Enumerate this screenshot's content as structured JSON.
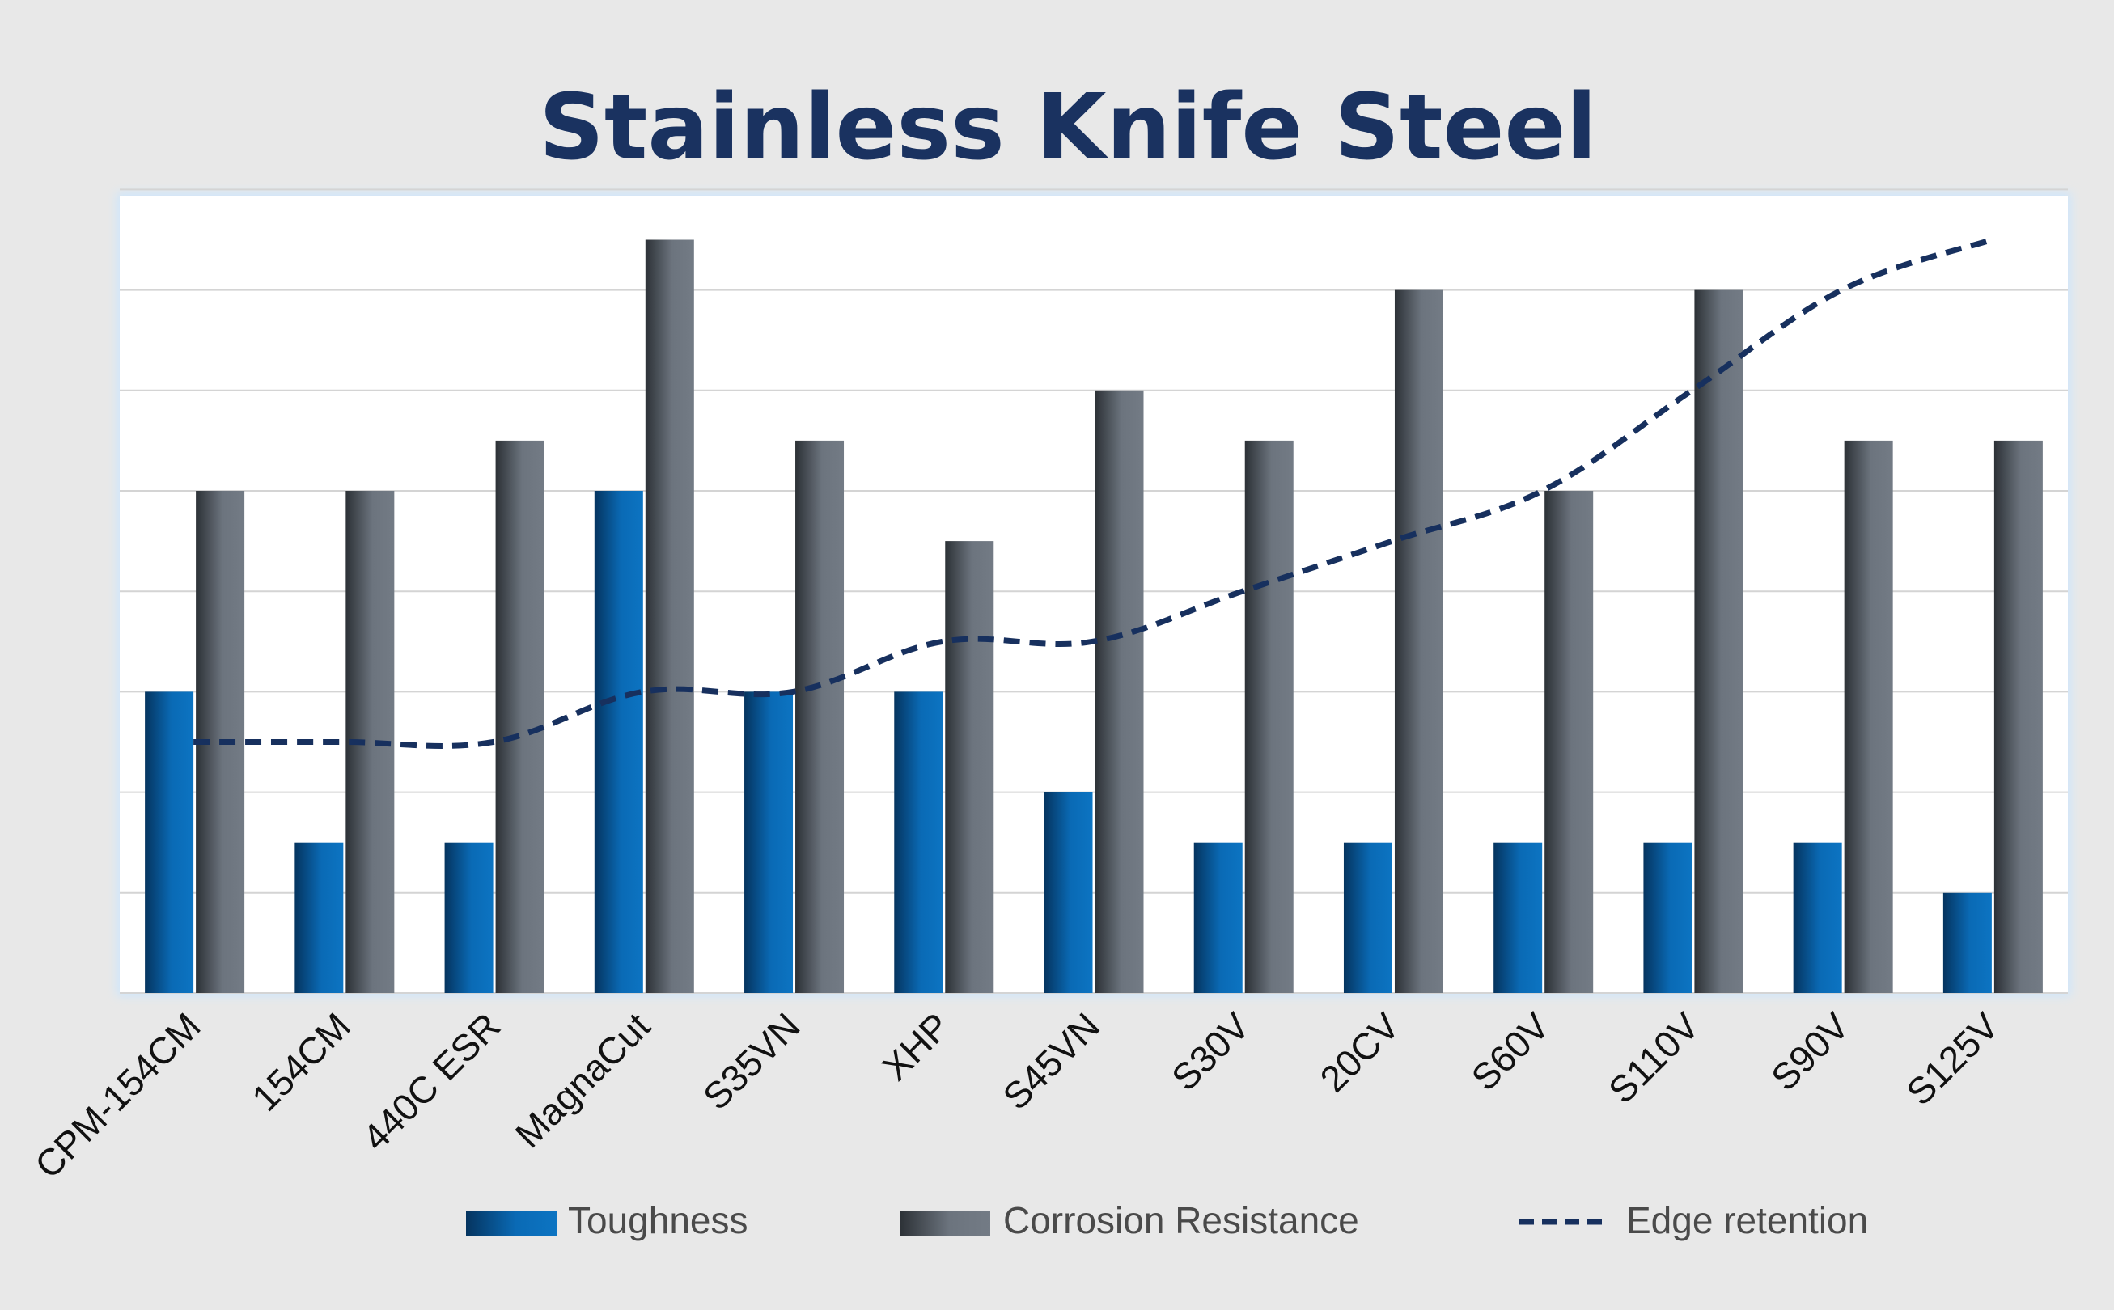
{
  "colors": {
    "background": "#e8e8e8",
    "plot_background": "#ffffff",
    "gridline": "#d4d4d4",
    "title": "#1a3260",
    "axis_text": "#111111",
    "legend_text": "#4a4a4a",
    "toughness": "#0a6ab5",
    "corrosion": "#6c747e",
    "edge_retention": "#17305e"
  },
  "chart_data": {
    "type": "bar",
    "title": "Stainless Knife Steel",
    "xlabel": "",
    "ylabel": "",
    "ylim": [
      0,
      8
    ],
    "gridlines": true,
    "legend_position": "bottom",
    "categories": [
      "CPM-154CM",
      "154CM",
      "440C ESR",
      "MagnaCut",
      "S35VN",
      "XHP",
      "S45VN",
      "S30V",
      "20CV",
      "S60V",
      "S110V",
      "S90V",
      "S125V"
    ],
    "series": [
      {
        "name": "Toughness",
        "type": "bar",
        "values": [
          3,
          1.5,
          1.5,
          5,
          3,
          3,
          2,
          1.5,
          1.5,
          1.5,
          1.5,
          1.5,
          1
        ]
      },
      {
        "name": "Corrosion Resistance",
        "type": "bar",
        "values": [
          5,
          5,
          5.5,
          7.5,
          5.5,
          4.5,
          6,
          5.5,
          7,
          5,
          7,
          5.5,
          5.5
        ]
      },
      {
        "name": "Edge retention",
        "type": "line",
        "style": "dashed",
        "values": [
          2.5,
          2.5,
          2.5,
          3,
          3,
          3.5,
          3.5,
          4,
          4.5,
          5,
          6,
          7,
          7.5
        ]
      }
    ]
  }
}
